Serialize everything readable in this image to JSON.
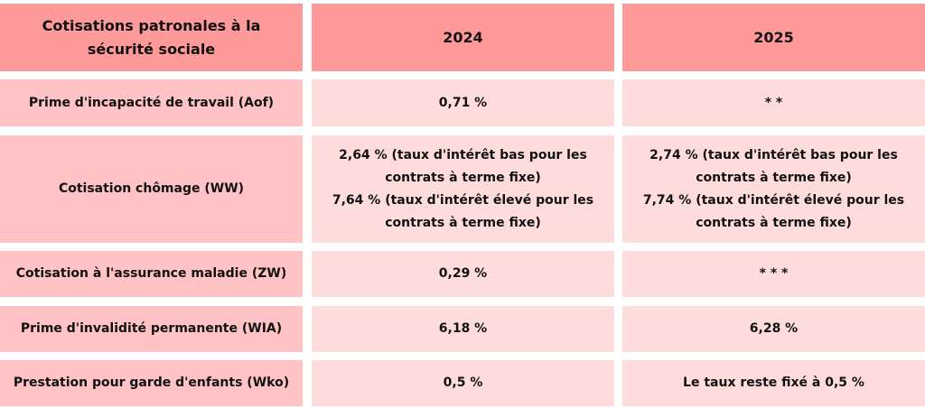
{
  "table": {
    "header": {
      "col1": "Cotisations patronales à la sécurité sociale",
      "col2": "2024",
      "col3": "2025"
    },
    "rows": [
      {
        "label": "Prime d'incapacité de travail (Aof)",
        "v2024": "0,71 %",
        "v2025": "* *"
      },
      {
        "label": "Cotisation chômage (WW)",
        "v2024": [
          "2,64 % (taux d'intérêt bas pour les",
          "contrats à terme fixe)",
          "7,64 % (taux d'intérêt élevé pour les",
          "contrats à terme fixe)"
        ],
        "v2025": [
          "2,74 % (taux d'intérêt bas pour les",
          "contrats à terme fixe)",
          "7,74 % (taux d'intérêt élevé pour les",
          "contrats à terme fixe)"
        ]
      },
      {
        "label": "Cotisation à l'assurance maladie (ZW)",
        "v2024": "0,29 %",
        "v2025": "* * *"
      },
      {
        "label": "Prime d'invalidité permanente (WIA)",
        "v2024": "6,18 %",
        "v2025": "6,28 %"
      },
      {
        "label": "Prestation pour garde d'enfants (Wko)",
        "v2024": "0,5 %",
        "v2025": "Le taux reste fixé à 0,5 %"
      }
    ]
  },
  "colors": {
    "header": "#fe9a9a",
    "label_cells": "#ffc3c6",
    "value_cells": "#ffdcdc"
  }
}
